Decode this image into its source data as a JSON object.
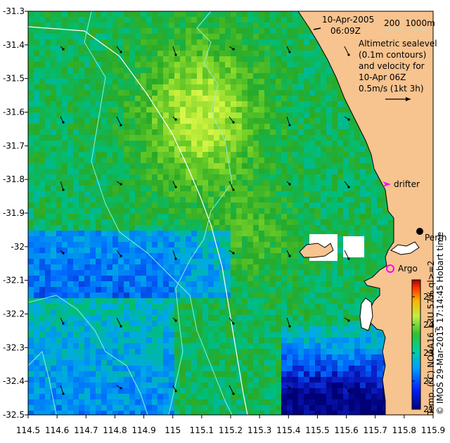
{
  "map": {
    "x_ticks": [
      "114.5",
      "114.6",
      "114.7",
      "114.8",
      "114.9",
      "115",
      "115.1",
      "115.2",
      "115.3",
      "115.4",
      "115.5",
      "115.6",
      "115.7",
      "115.8",
      "115.9"
    ],
    "y_ticks": [
      "-31.3",
      "-31.4",
      "-31.5",
      "-31.6",
      "-31.7",
      "-31.8",
      "-31.9",
      "-32",
      "-32.1",
      "-32.2",
      "-32.3",
      "-32.4",
      "-32.5"
    ],
    "date": "10-Apr-2005",
    "time": "06:09Z",
    "depth_contours": "200  1000m",
    "legend_lines": [
      "Altimetric sealevel",
      "(0.1m contours)",
      "and velocity for",
      "10-Apr 06Z"
    ],
    "velocity_scale": "0.5m/s (1kt 3h)",
    "drifter_label": "drifter",
    "argo_label": "Argo",
    "perth_label": "Perth",
    "colorbar_ticks": [
      "25",
      "24",
      "23",
      "22",
      "21"
    ],
    "colorbar_caption": "Temp. (°C) NOAA16_L3U 57% ql>=2",
    "credit": "© IMOS 29-Mar-2015 17:14:45 Hobart time",
    "colors": {
      "land": "#f7c38f",
      "drifter": "#ff00ff",
      "argo": "#ff00ff",
      "contour_200": "#8cf0e0",
      "contour_1000": "#ffffff"
    }
  }
}
